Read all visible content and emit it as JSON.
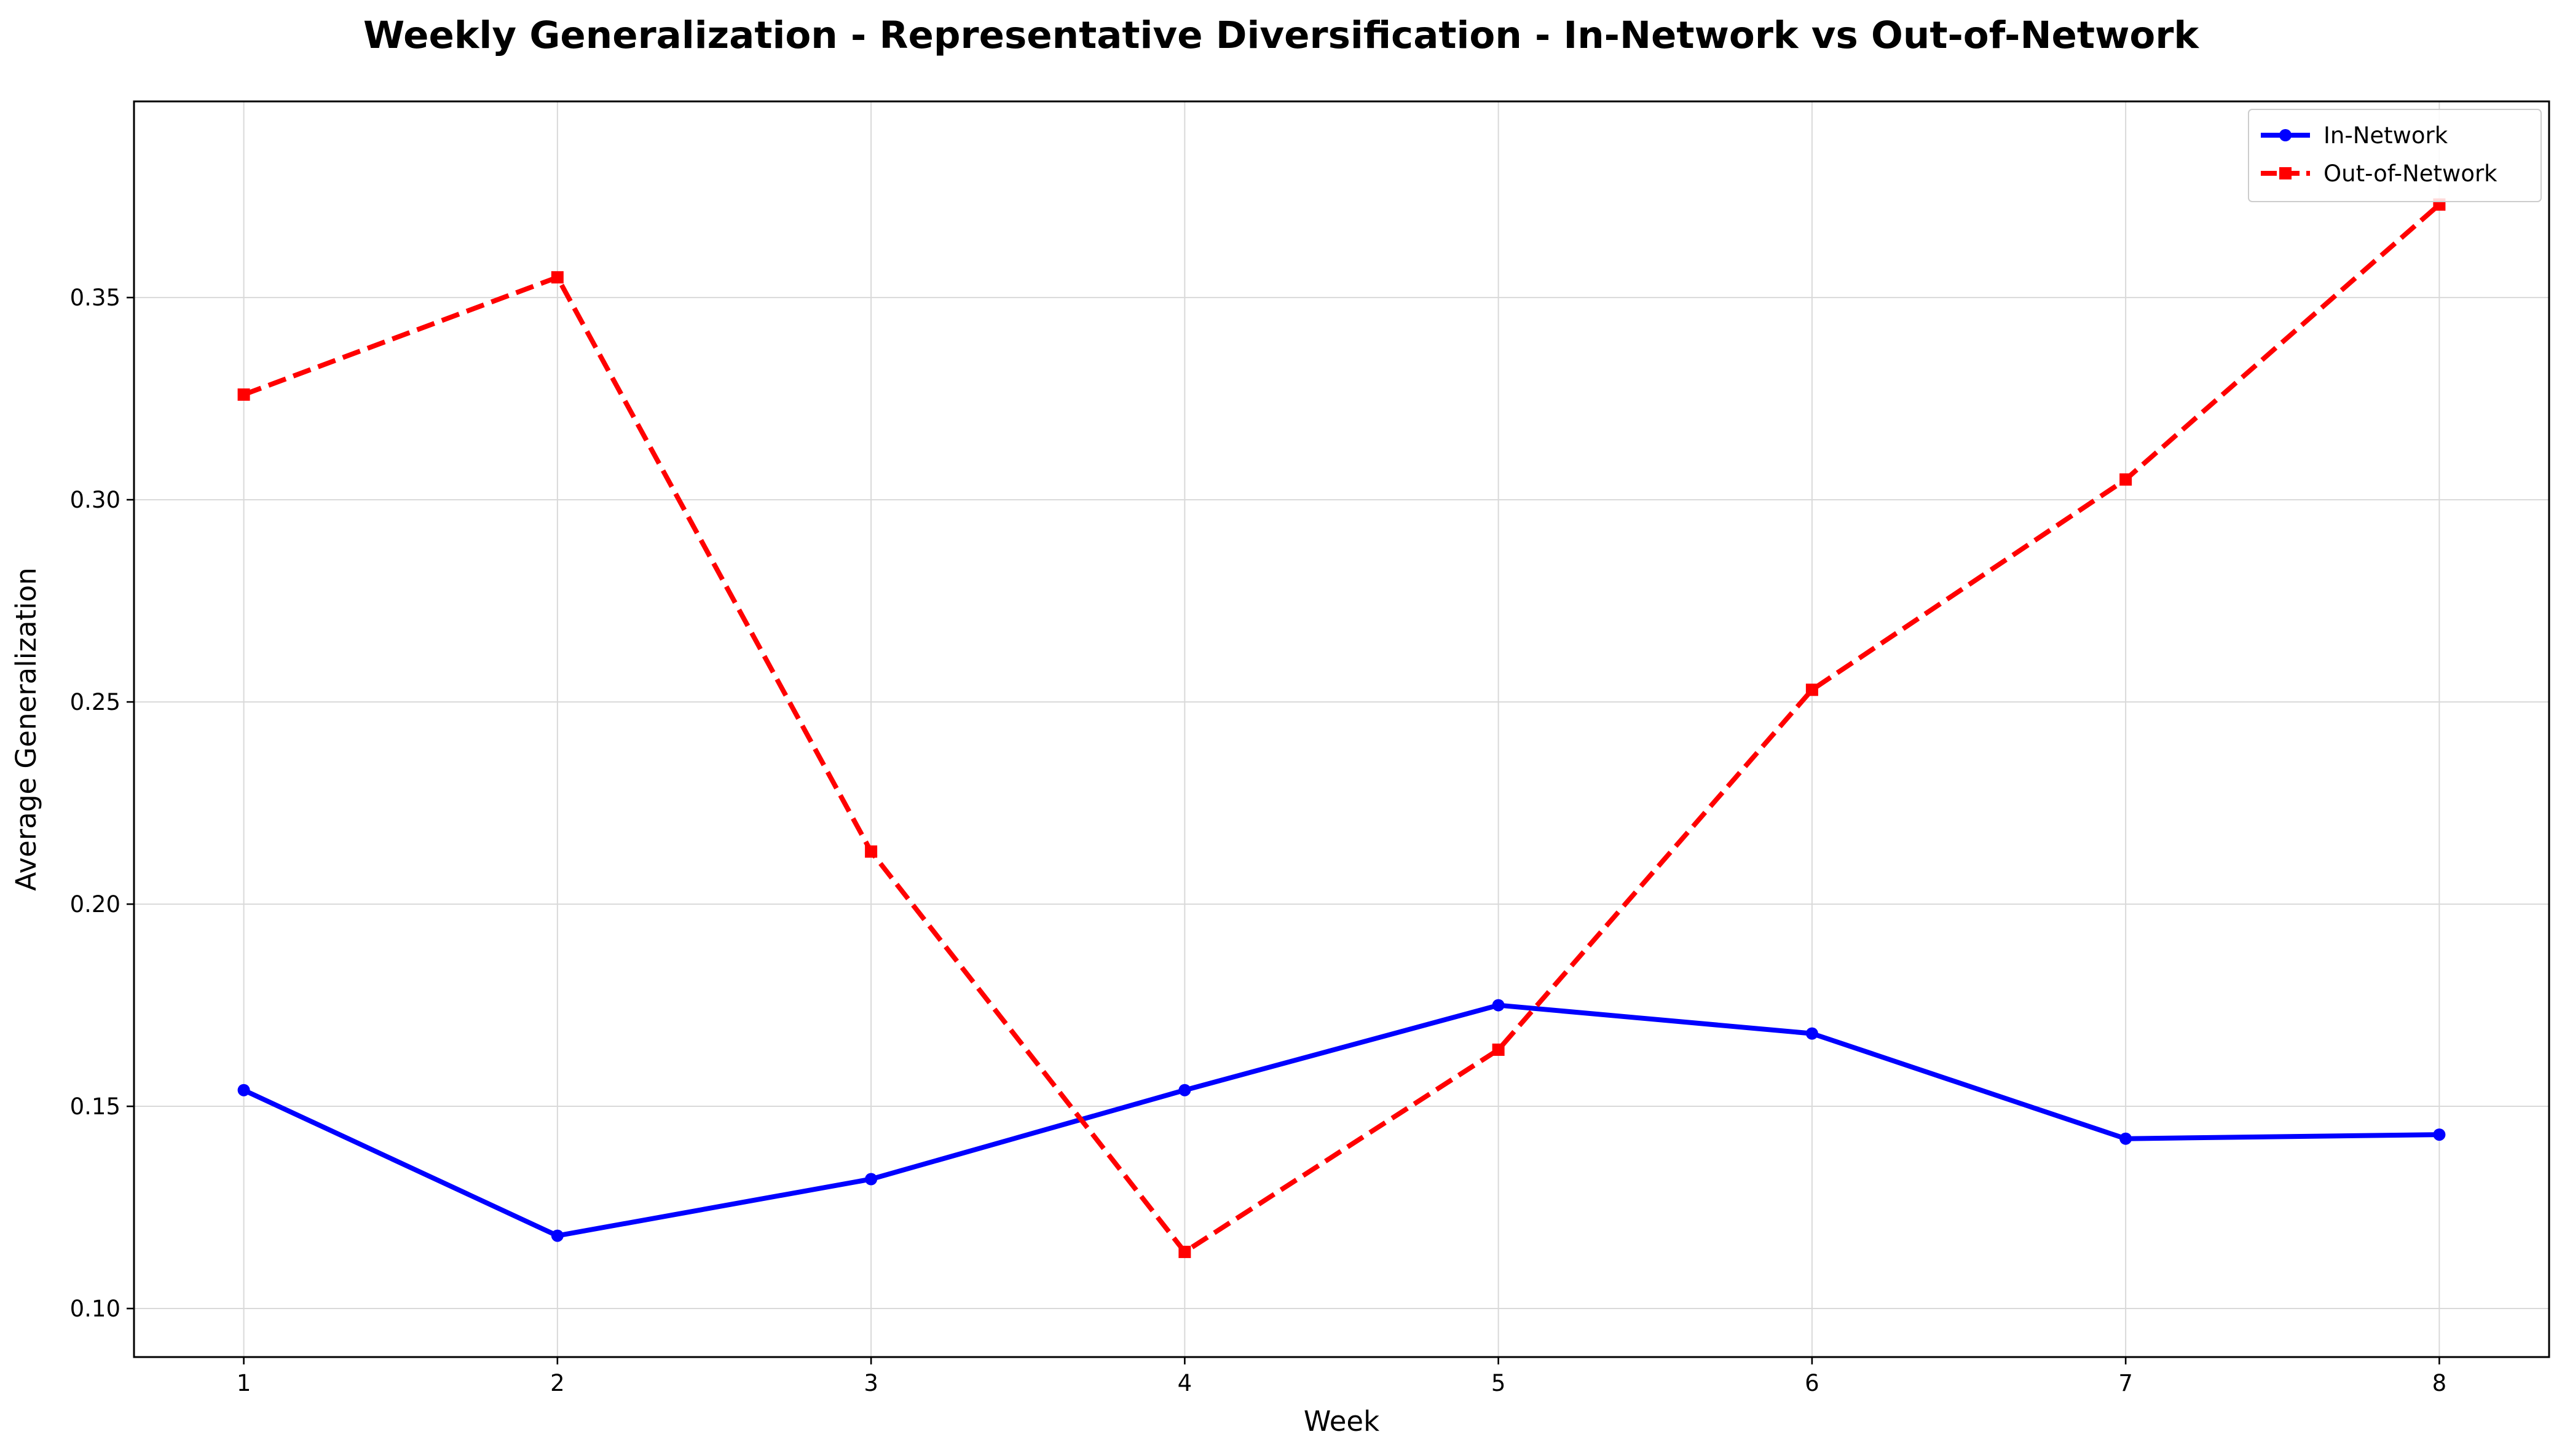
{
  "chart_data": {
    "type": "line",
    "title": "Weekly Generalization - Representative Diversification - In-Network vs Out-of-Network",
    "xlabel": "Week",
    "ylabel": "Average Generalization",
    "x": [
      1,
      2,
      3,
      4,
      5,
      6,
      7,
      8
    ],
    "x_tick_labels": [
      "1",
      "2",
      "3",
      "4",
      "5",
      "6",
      "7",
      "8"
    ],
    "xlim": [
      0.65,
      8.35
    ],
    "ylim": [
      0.088,
      0.3985
    ],
    "y_ticks": [
      0.1,
      0.15,
      0.2,
      0.25,
      0.3,
      0.35
    ],
    "y_tick_labels": [
      "0.10",
      "0.15",
      "0.20",
      "0.25",
      "0.30",
      "0.35"
    ],
    "grid": true,
    "legend_position": "top-right",
    "series": [
      {
        "name": "In-Network",
        "color": "#0000ff",
        "line_style": "solid",
        "marker": "circle",
        "values": [
          0.154,
          0.118,
          0.132,
          0.154,
          0.175,
          0.168,
          0.142,
          0.143
        ]
      },
      {
        "name": "Out-of-Network",
        "color": "#ff0000",
        "line_style": "dashed",
        "marker": "square",
        "values": [
          0.326,
          0.355,
          0.213,
          0.114,
          0.164,
          0.253,
          0.305,
          0.373
        ]
      }
    ]
  }
}
